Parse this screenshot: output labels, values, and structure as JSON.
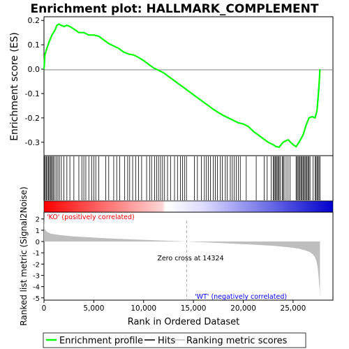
{
  "colors": {
    "es_line": "#00ff00",
    "hit_bar": "#000000",
    "metric_fill": "#bebebe",
    "ko_gradient_start": "#ff0000",
    "ko_gradient_end": "#ffd6d6",
    "wt_gradient_start": "#dcdcff",
    "wt_gradient_end": "#0000cc",
    "ko_label": "#ff0000",
    "wt_label": "#0000ff",
    "zero_cross_line": "#b4b4b4"
  },
  "chart_data": [
    {
      "type": "line",
      "title": "Enrichment plot: HALLMARK_COMPLEMENT",
      "ylabel": "Enrichment score (ES)",
      "xlim": [
        0,
        29000
      ],
      "ylim": [
        -0.355,
        0.215
      ],
      "grid": false,
      "yticks": [
        0.2,
        0.1,
        0.0,
        -0.1,
        -0.2,
        -0.3
      ],
      "ytick_labels": [
        "0.2",
        "0.1",
        "0.0",
        "-0.1",
        "-0.2",
        "-0.3"
      ],
      "series": [
        {
          "name": "Enrichment profile",
          "x": [
            0,
            100,
            250,
            500,
            800,
            1100,
            1300,
            1500,
            1700,
            2000,
            2300,
            2600,
            3000,
            3500,
            4000,
            4500,
            5000,
            5500,
            6000,
            6500,
            7000,
            7500,
            8000,
            8500,
            9000,
            9500,
            10000,
            10500,
            11000,
            11500,
            12000,
            12500,
            13000,
            13500,
            14000,
            14500,
            15000,
            15500,
            16000,
            16500,
            17000,
            17500,
            18000,
            18500,
            19000,
            19500,
            20000,
            20500,
            21000,
            21500,
            22000,
            22500,
            23000,
            23300,
            23600,
            24000,
            24500,
            25000,
            25300,
            25600,
            26000,
            26300,
            26600,
            26900,
            27200,
            27400,
            27500,
            27600,
            27700
          ],
          "y": [
            0.0,
            0.06,
            0.08,
            0.11,
            0.14,
            0.16,
            0.18,
            0.185,
            0.18,
            0.175,
            0.18,
            0.175,
            0.165,
            0.15,
            0.15,
            0.14,
            0.14,
            0.135,
            0.12,
            0.105,
            0.095,
            0.085,
            0.07,
            0.062,
            0.058,
            0.048,
            0.035,
            0.02,
            0.005,
            -0.005,
            -0.015,
            -0.03,
            -0.045,
            -0.06,
            -0.075,
            -0.09,
            -0.105,
            -0.12,
            -0.135,
            -0.15,
            -0.165,
            -0.178,
            -0.19,
            -0.2,
            -0.21,
            -0.22,
            -0.225,
            -0.235,
            -0.255,
            -0.27,
            -0.285,
            -0.3,
            -0.31,
            -0.318,
            -0.32,
            -0.3,
            -0.29,
            -0.31,
            -0.318,
            -0.3,
            -0.27,
            -0.23,
            -0.2,
            -0.195,
            -0.2,
            -0.17,
            -0.12,
            -0.07,
            0.0
          ]
        }
      ]
    },
    {
      "type": "bar",
      "series": [
        {
          "name": "Hits",
          "x": [
            50,
            150,
            250,
            350,
            450,
            550,
            650,
            750,
            850,
            950,
            1100,
            1250,
            1400,
            1550,
            1750,
            2000,
            2300,
            2600,
            3000,
            3500,
            3800,
            4000,
            4200,
            4500,
            4800,
            5000,
            5200,
            5500,
            6200,
            6500,
            7000,
            7300,
            7600,
            8100,
            8400,
            8600,
            8900,
            9200,
            9500,
            9800,
            10300,
            10600,
            10800,
            11100,
            11300,
            11500,
            11700,
            11900,
            12100,
            12400,
            12700,
            13100,
            13400,
            13700,
            13900,
            14100,
            14300,
            15100,
            15400,
            15800,
            16100,
            16300,
            16500,
            16700,
            17000,
            17200,
            17400,
            17700,
            17900,
            18200,
            18400,
            18700,
            18900,
            19100,
            19300,
            19500,
            19700,
            20300,
            21300,
            22100,
            22400,
            22800,
            23000,
            23100,
            23200,
            23300,
            23400,
            23500,
            23600,
            23700,
            23900,
            24000,
            24100,
            24300,
            24500,
            24700,
            25300,
            25400,
            25500,
            25600,
            25700,
            25800,
            25900,
            26000,
            26100,
            26200,
            26300,
            26400,
            26500,
            26600,
            26700,
            27000,
            27200,
            27300,
            27400,
            27500,
            27600,
            27700
          ]
        }
      ]
    },
    {
      "type": "area",
      "xlabel": "Rank in Ordered Dataset",
      "ylabel": "Ranked list metric (Signal2Noise)",
      "xlim": [
        0,
        29000
      ],
      "ylim": [
        -5.2,
        2.6
      ],
      "grid": false,
      "xticks": [
        0,
        5000,
        10000,
        15000,
        20000,
        25000
      ],
      "xtick_labels": [
        "0",
        "5,000",
        "10,000",
        "15,000",
        "20,000",
        "25,000"
      ],
      "yticks": [
        2,
        1,
        0,
        -1,
        -2,
        -3,
        -4,
        -5
      ],
      "ytick_labels": [
        "2",
        "1",
        "0",
        "-1",
        "-2",
        "-3",
        "-4",
        "-5"
      ],
      "zero_cross": 14324,
      "annotations": [
        "'KO' (positively correlated)",
        "Zero cross at 14324",
        "'WT' (negatively correlated)"
      ],
      "series": [
        {
          "name": "Ranking metric scores",
          "x": [
            0,
            30,
            100,
            300,
            700,
            1500,
            3000,
            6000,
            10000,
            14324,
            18000,
            21000,
            23000,
            24500,
            25500,
            26200,
            26700,
            27000,
            27200,
            27350,
            27450,
            27550,
            27650,
            27700
          ],
          "y": [
            2.3,
            1.5,
            1.05,
            0.85,
            0.7,
            0.58,
            0.45,
            0.3,
            0.15,
            0.0,
            -0.15,
            -0.28,
            -0.38,
            -0.5,
            -0.62,
            -0.78,
            -0.95,
            -1.15,
            -1.4,
            -1.75,
            -2.2,
            -3.0,
            -4.1,
            -4.8
          ]
        }
      ]
    }
  ],
  "legend": {
    "items": [
      {
        "label": "Enrichment profile",
        "key": "es"
      },
      {
        "label": "Hits",
        "key": "hits"
      },
      {
        "label": "Ranking metric scores",
        "key": "metric"
      }
    ]
  }
}
